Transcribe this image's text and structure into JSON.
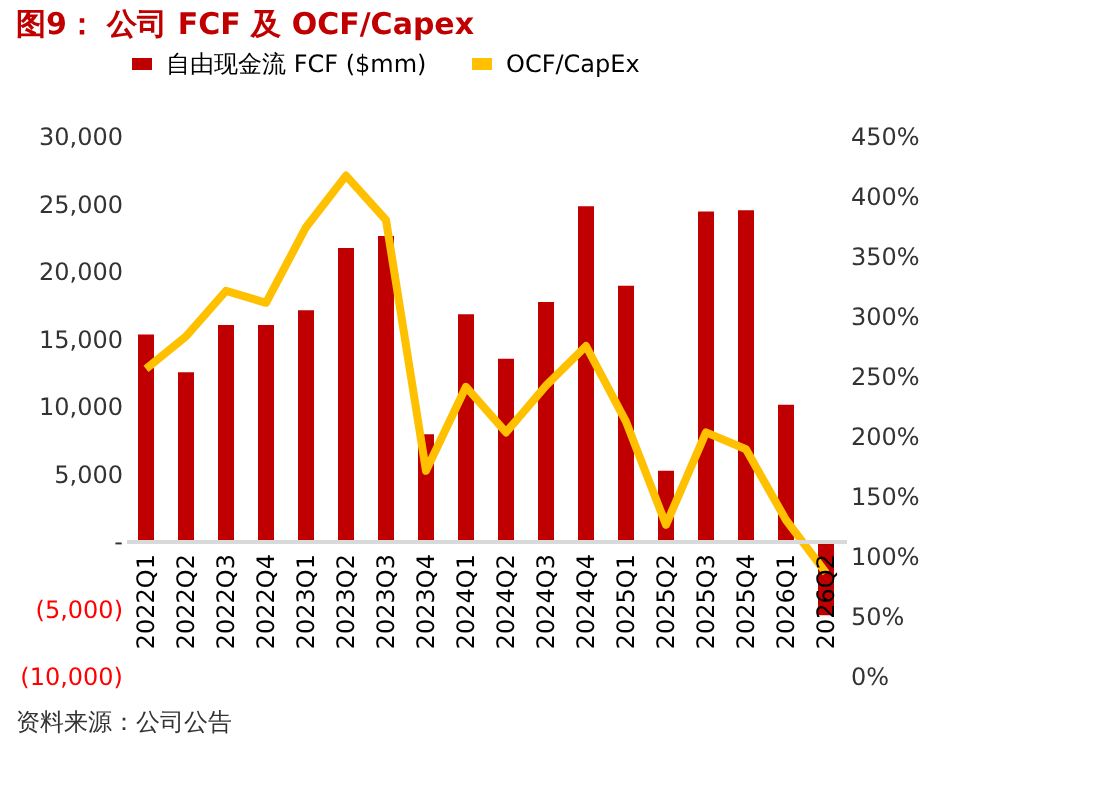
{
  "chart_data": {
    "type": "bar",
    "title": "图9： 公司 FCF 及 OCF/Capex",
    "categories": [
      "2022Q1",
      "2022Q2",
      "2022Q3",
      "2022Q4",
      "2023Q1",
      "2023Q2",
      "2023Q3",
      "2023Q4",
      "2024Q1",
      "2024Q2",
      "2024Q3",
      "2024Q4",
      "2025Q1",
      "2025Q2",
      "2025Q3",
      "2025Q4",
      "2026Q1",
      "2026Q2"
    ],
    "series": [
      {
        "name": "自由现金流 FCF ($mm)",
        "color": "#c00000",
        "values": [
          15300,
          12500,
          16000,
          16000,
          17100,
          21700,
          22600,
          7900,
          16800,
          13500,
          17700,
          24800,
          18900,
          5200,
          24400,
          24500,
          10100,
          -5500
        ]
      },
      {
        "name": "OCF/CapEx",
        "color": "#ffc000",
        "type": "line",
        "axis": "y2",
        "values": [
          256,
          283,
          321,
          311,
          374,
          417,
          380,
          171,
          241,
          203,
          242,
          275,
          212,
          126,
          203,
          189,
          130,
          86
        ]
      }
    ],
    "ylim": [
      -10000,
      30000
    ],
    "yticks": [
      {
        "value": -10000,
        "label": "(10,000)"
      },
      {
        "value": -5000,
        "label": "(5,000)"
      },
      {
        "value": 0,
        "label": "-"
      },
      {
        "value": 5000,
        "label": "5,000"
      },
      {
        "value": 10000,
        "label": "10,000"
      },
      {
        "value": 15000,
        "label": "15,000"
      },
      {
        "value": 20000,
        "label": "20,000"
      },
      {
        "value": 25000,
        "label": "25,000"
      },
      {
        "value": 30000,
        "label": "30,000"
      }
    ],
    "y2lim": [
      0,
      450
    ],
    "y2ticks": [
      {
        "value": 0,
        "label": "0%"
      },
      {
        "value": 50,
        "label": "50%"
      },
      {
        "value": 100,
        "label": "100%"
      },
      {
        "value": 150,
        "label": "150%"
      },
      {
        "value": 200,
        "label": "200%"
      },
      {
        "value": 250,
        "label": "250%"
      },
      {
        "value": 300,
        "label": "300%"
      },
      {
        "value": 350,
        "label": "350%"
      },
      {
        "value": 400,
        "label": "400%"
      },
      {
        "value": 450,
        "label": "450%"
      }
    ],
    "legend": "top",
    "grid": false,
    "marker": "none",
    "line_style": "solid",
    "annotations": [
      "资料来源：公司公告"
    ]
  }
}
